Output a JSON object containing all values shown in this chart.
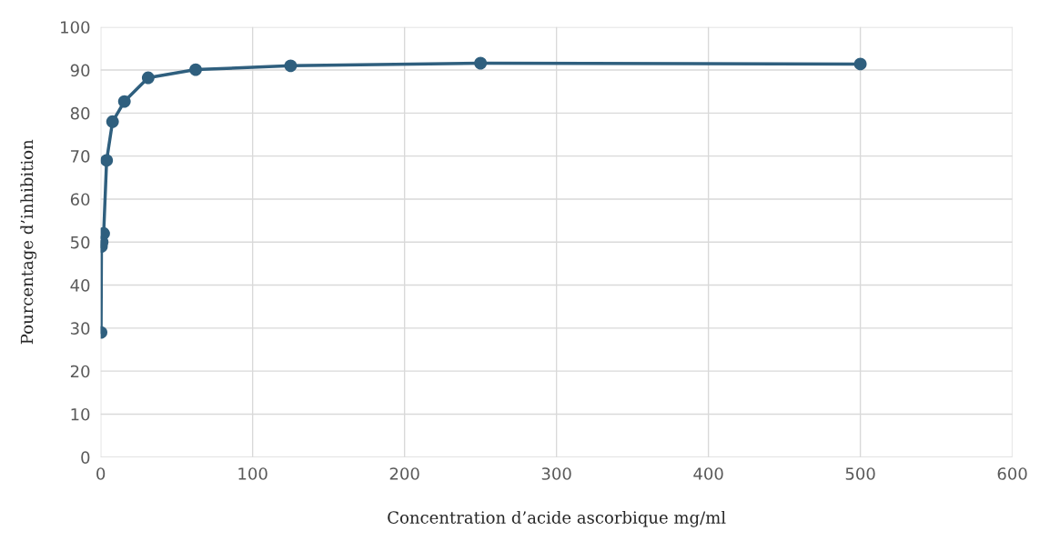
{
  "chart_data": {
    "type": "line",
    "xlabel": "Concentration d’acide ascorbique mg/ml",
    "ylabel": "Pourcentage d’inhibition",
    "x": [
      0.24,
      0.49,
      0.98,
      1.95,
      3.9,
      7.8,
      15.6,
      31.25,
      62.5,
      125,
      250,
      500
    ],
    "series": [
      {
        "color": "#2f5f7e",
        "values": [
          29,
          49,
          50,
          52,
          69,
          78,
          82.7,
          88.2,
          90.1,
          91,
          91.6,
          91.4
        ]
      }
    ],
    "xlim": [
      0,
      600
    ],
    "xticks": [
      0,
      100,
      200,
      300,
      400,
      500,
      600
    ],
    "ylim": [
      0,
      100
    ],
    "yticks": [
      0,
      10,
      20,
      30,
      40,
      50,
      60,
      70,
      80,
      90,
      100
    ],
    "grid": true,
    "marker": "circle",
    "line_style": "solid",
    "legend": false
  }
}
